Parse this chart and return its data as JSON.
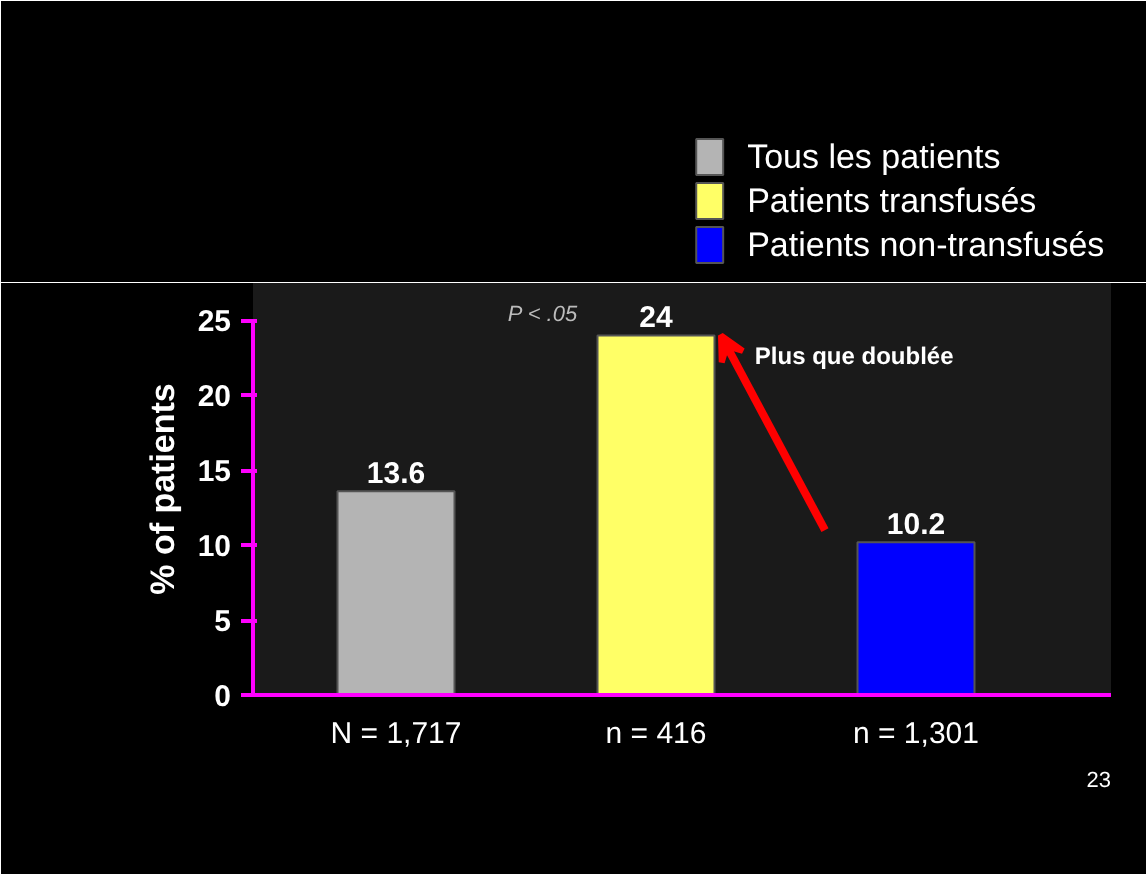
{
  "chart_data": {
    "type": "bar",
    "categories": [
      "N = 1,717",
      "n = 416",
      "n = 1,301"
    ],
    "series": [
      {
        "name": "Tous les patients",
        "color": "#b4b4b4",
        "values": [
          13.6,
          null,
          null
        ]
      },
      {
        "name": "Patients transfusés",
        "color": "#ffff66",
        "values": [
          null,
          24,
          null
        ]
      },
      {
        "name": "Patients non-transfusés",
        "color": "#0000ff",
        "values": [
          null,
          null,
          10.2
        ]
      }
    ],
    "stacked": true,
    "ylabel": "% of patients",
    "ylim": [
      0,
      25
    ],
    "yticks": [
      0,
      5,
      10,
      15,
      20,
      25
    ],
    "data_labels": true,
    "grid": false,
    "legend": "top right",
    "annotations": [
      "P < .05",
      "Plus que doublée",
      "23"
    ]
  }
}
